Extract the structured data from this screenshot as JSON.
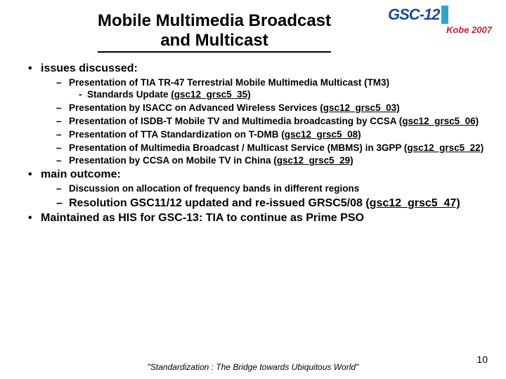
{
  "title_line1": "Mobile Multimedia Broadcast",
  "title_line2": "and Multicast",
  "logo": {
    "text_gsc": "GSC",
    "text_dash12": "-12",
    "kobe": "Kobe 2007"
  },
  "sections": {
    "issues_heading": "issues discussed:",
    "issues": [
      {
        "text": "Presentation of TIA TR-47 Terrestrial Mobile Multimedia Multicast (TM3)",
        "sub_text": "Standards Update ",
        "sub_ref": "(gsc12_grsc5_35)"
      },
      {
        "text": "Presentation by ISACC on Advanced Wireless Services ",
        "ref": "(gsc12_grsc5_03)"
      },
      {
        "text": "Presentation of ISDB-T Mobile TV and Multimedia broadcasting by CCSA ",
        "ref": "(gsc12_grsc5_06)"
      },
      {
        "text": "Presentation of TTA Standardization on T-DMB ",
        "ref": "(gsc12_grsc5_08)"
      },
      {
        "text": "Presentation of Multimedia Broadcast / Multicast Service (MBMS) in 3GPP ",
        "ref": "(gsc12_grsc5_22)"
      },
      {
        "text": "Presentation by CCSA on Mobile TV in China ",
        "ref": "(gsc12_grsc5_29)"
      }
    ],
    "outcome_heading": "main outcome:",
    "outcome": [
      {
        "text": "Discussion on allocation of frequency bands in different regions"
      },
      {
        "text": "Resolution GSC11/12 updated and re-issued GRSC5/08 ",
        "ref": "(gsc12_grsc5_47)",
        "big": true
      }
    ],
    "maintained": "Maintained as HIS for GSC-13: TIA to continue as Prime PSO"
  },
  "footer": "\"Standardization : The Bridge towards Ubiquitous World\"",
  "page_number": "10",
  "colors": {
    "text": "#000000",
    "background": "#ffffff",
    "logo_blue": "#1a4aa0",
    "logo_cyan": "#2fa5c9",
    "logo_red": "#d02030"
  }
}
